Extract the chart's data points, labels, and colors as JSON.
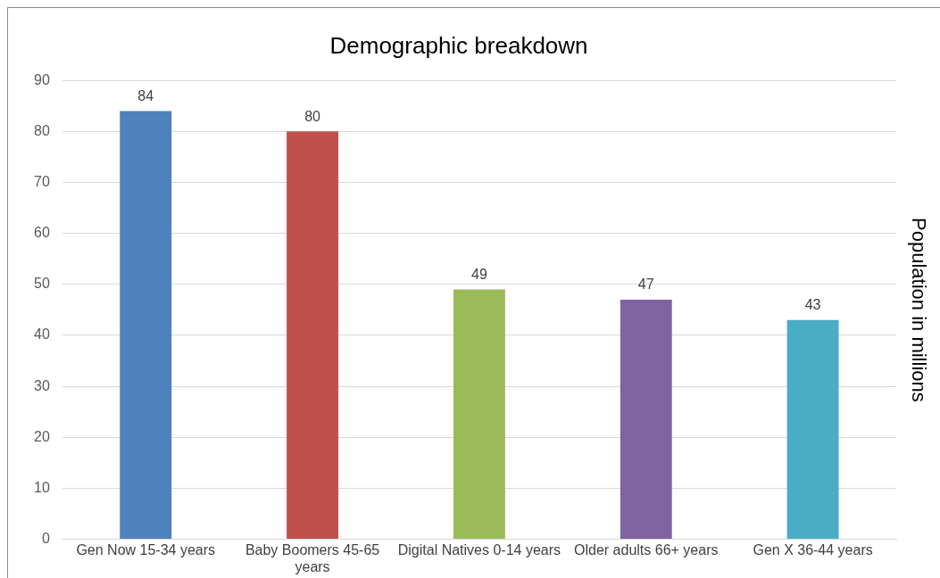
{
  "chart_data": {
    "type": "bar",
    "title": "Demographic breakdown",
    "ylabel": "Population in millions",
    "categories": [
      "Gen Now 15-34 years",
      "Baby Boomers 45-65 years",
      "Digital Natives 0-14 years",
      "Older adults 66+ years",
      "Gen X 36-44 years"
    ],
    "values": [
      84,
      80,
      49,
      47,
      43
    ],
    "colors": [
      "#4f81bd",
      "#c0504d",
      "#9bbb59",
      "#8064a2",
      "#4bacc6"
    ],
    "ylim": [
      0,
      90
    ],
    "yticks": [
      0,
      10,
      20,
      30,
      40,
      50,
      60,
      70,
      80,
      90
    ],
    "grid": "y",
    "data_labels": true,
    "legend": false
  }
}
